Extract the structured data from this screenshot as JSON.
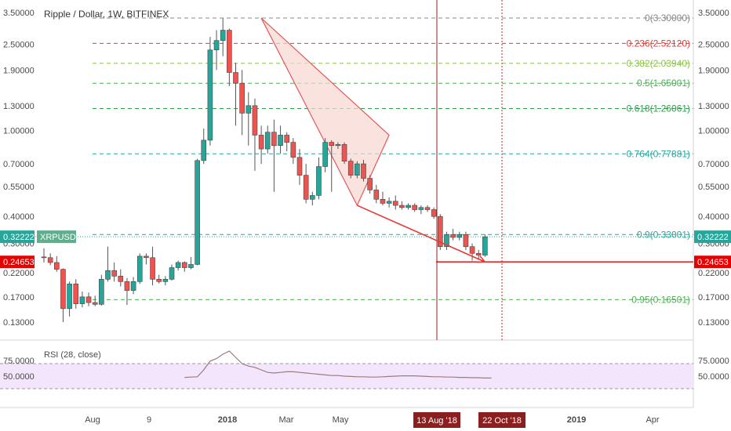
{
  "chart_data": {
    "type": "candlestick",
    "title": "Ripple / Dollar, 1W, BITFINEX",
    "symbol": "XRPUSD",
    "price_scale": "log",
    "price_ticks": [
      "3.50000",
      "2.50000",
      "1.90000",
      "1.30000",
      "1.00000",
      "0.70000",
      "0.55000",
      "0.40000",
      "0.30000",
      "0.22000",
      "0.17000",
      "0.13000"
    ],
    "time_labels": [
      "Aug",
      "9",
      "2018",
      "Mar",
      "May",
      "2019",
      "Apr"
    ],
    "highlighted_dates": [
      "13 Aug '18",
      "22 Oct '18"
    ],
    "current_price": {
      "label": "0.32222",
      "value": 0.32222,
      "color": "#26a69a"
    },
    "target_price": {
      "label": "0.24653",
      "value": 0.24653,
      "color": "#e60000"
    },
    "fib_levels": [
      {
        "label": "0(3.30000)",
        "value": 3.3,
        "color": "#888888"
      },
      {
        "label": "0.236(2.52120)",
        "value": 2.5212,
        "color": "#e53935"
      },
      {
        "label": "0.382(2.03940)",
        "value": 2.0394,
        "color": "#8bc34a"
      },
      {
        "label": "0.5(1.65001)",
        "value": 1.65001,
        "color": "#4caf50"
      },
      {
        "label": "0.618(1.26061)",
        "value": 1.26061,
        "color": "#2e9e4e"
      },
      {
        "label": "0.764(0.77881)",
        "value": 0.77881,
        "color": "#26a69a"
      },
      {
        "label": "0.9(0.33001)",
        "value": 0.33001,
        "color": "#26a69a"
      },
      {
        "label": "0.95(0.16501)",
        "value": 0.16501,
        "color": "#4caf50"
      }
    ],
    "pattern_points": [
      {
        "t": 34,
        "price": 3.3
      },
      {
        "t": 54,
        "price": 0.95
      },
      {
        "t": 49,
        "price": 0.45
      },
      {
        "t": 69,
        "price": 0.2465
      }
    ],
    "candles": [
      {
        "o": 0.26,
        "h": 0.285,
        "l": 0.245,
        "c": 0.258
      },
      {
        "o": 0.258,
        "h": 0.27,
        "l": 0.238,
        "c": 0.245
      },
      {
        "o": 0.245,
        "h": 0.262,
        "l": 0.222,
        "c": 0.228
      },
      {
        "o": 0.228,
        "h": 0.23,
        "l": 0.13,
        "c": 0.15
      },
      {
        "o": 0.15,
        "h": 0.2,
        "l": 0.138,
        "c": 0.195
      },
      {
        "o": 0.195,
        "h": 0.205,
        "l": 0.15,
        "c": 0.158
      },
      {
        "o": 0.158,
        "h": 0.18,
        "l": 0.152,
        "c": 0.17
      },
      {
        "o": 0.17,
        "h": 0.178,
        "l": 0.154,
        "c": 0.16
      },
      {
        "o": 0.16,
        "h": 0.172,
        "l": 0.154,
        "c": 0.157
      },
      {
        "o": 0.157,
        "h": 0.215,
        "l": 0.155,
        "c": 0.205
      },
      {
        "o": 0.205,
        "h": 0.29,
        "l": 0.2,
        "c": 0.225
      },
      {
        "o": 0.225,
        "h": 0.245,
        "l": 0.2,
        "c": 0.212
      },
      {
        "o": 0.212,
        "h": 0.228,
        "l": 0.19,
        "c": 0.2
      },
      {
        "o": 0.2,
        "h": 0.208,
        "l": 0.156,
        "c": 0.182
      },
      {
        "o": 0.182,
        "h": 0.21,
        "l": 0.175,
        "c": 0.2
      },
      {
        "o": 0.2,
        "h": 0.27,
        "l": 0.195,
        "c": 0.262
      },
      {
        "o": 0.262,
        "h": 0.27,
        "l": 0.24,
        "c": 0.258
      },
      {
        "o": 0.258,
        "h": 0.29,
        "l": 0.192,
        "c": 0.205
      },
      {
        "o": 0.205,
        "h": 0.215,
        "l": 0.196,
        "c": 0.2
      },
      {
        "o": 0.2,
        "h": 0.212,
        "l": 0.192,
        "c": 0.205
      },
      {
        "o": 0.205,
        "h": 0.24,
        "l": 0.202,
        "c": 0.232
      },
      {
        "o": 0.232,
        "h": 0.25,
        "l": 0.225,
        "c": 0.245
      },
      {
        "o": 0.245,
        "h": 0.248,
        "l": 0.222,
        "c": 0.232
      },
      {
        "o": 0.232,
        "h": 0.26,
        "l": 0.228,
        "c": 0.24
      },
      {
        "o": 0.24,
        "h": 0.738,
        "l": 0.238,
        "c": 0.725
      },
      {
        "o": 0.725,
        "h": 1.02,
        "l": 0.7,
        "c": 0.9
      },
      {
        "o": 0.9,
        "h": 2.7,
        "l": 0.85,
        "c": 2.35
      },
      {
        "o": 2.35,
        "h": 2.9,
        "l": 1.9,
        "c": 2.6
      },
      {
        "o": 2.6,
        "h": 3.3,
        "l": 2.2,
        "c": 2.9
      },
      {
        "o": 2.9,
        "h": 2.95,
        "l": 1.6,
        "c": 1.85
      },
      {
        "o": 1.85,
        "h": 2.05,
        "l": 1.05,
        "c": 1.65
      },
      {
        "o": 1.65,
        "h": 1.9,
        "l": 0.95,
        "c": 1.2
      },
      {
        "o": 1.2,
        "h": 1.5,
        "l": 0.85,
        "c": 1.3
      },
      {
        "o": 1.3,
        "h": 1.4,
        "l": 0.65,
        "c": 0.95
      },
      {
        "o": 0.95,
        "h": 1.05,
        "l": 0.7,
        "c": 0.82
      },
      {
        "o": 0.82,
        "h": 1.05,
        "l": 0.78,
        "c": 0.98
      },
      {
        "o": 0.98,
        "h": 1.12,
        "l": 0.52,
        "c": 0.85
      },
      {
        "o": 0.85,
        "h": 1.05,
        "l": 0.78,
        "c": 0.95
      },
      {
        "o": 0.95,
        "h": 0.98,
        "l": 0.8,
        "c": 0.88
      },
      {
        "o": 0.88,
        "h": 0.92,
        "l": 0.7,
        "c": 0.75
      },
      {
        "o": 0.75,
        "h": 0.82,
        "l": 0.56,
        "c": 0.62
      },
      {
        "o": 0.62,
        "h": 0.7,
        "l": 0.46,
        "c": 0.48
      },
      {
        "o": 0.48,
        "h": 0.52,
        "l": 0.45,
        "c": 0.5
      },
      {
        "o": 0.5,
        "h": 0.75,
        "l": 0.48,
        "c": 0.68
      },
      {
        "o": 0.68,
        "h": 0.92,
        "l": 0.64,
        "c": 0.88
      },
      {
        "o": 0.88,
        "h": 0.9,
        "l": 0.52,
        "c": 0.85
      },
      {
        "o": 0.85,
        "h": 0.88,
        "l": 0.82,
        "c": 0.86
      },
      {
        "o": 0.86,
        "h": 0.88,
        "l": 0.7,
        "c": 0.72
      },
      {
        "o": 0.72,
        "h": 0.74,
        "l": 0.6,
        "c": 0.62
      },
      {
        "o": 0.62,
        "h": 0.72,
        "l": 0.6,
        "c": 0.7
      },
      {
        "o": 0.7,
        "h": 0.73,
        "l": 0.58,
        "c": 0.6
      },
      {
        "o": 0.6,
        "h": 0.62,
        "l": 0.51,
        "c": 0.53
      },
      {
        "o": 0.53,
        "h": 0.56,
        "l": 0.46,
        "c": 0.48
      },
      {
        "o": 0.48,
        "h": 0.52,
        "l": 0.45,
        "c": 0.46
      },
      {
        "o": 0.46,
        "h": 0.49,
        "l": 0.44,
        "c": 0.47
      },
      {
        "o": 0.47,
        "h": 0.5,
        "l": 0.43,
        "c": 0.45
      },
      {
        "o": 0.45,
        "h": 0.47,
        "l": 0.43,
        "c": 0.44
      },
      {
        "o": 0.44,
        "h": 0.46,
        "l": 0.43,
        "c": 0.45
      },
      {
        "o": 0.45,
        "h": 0.46,
        "l": 0.42,
        "c": 0.43
      },
      {
        "o": 0.43,
        "h": 0.45,
        "l": 0.41,
        "c": 0.44
      },
      {
        "o": 0.44,
        "h": 0.45,
        "l": 0.42,
        "c": 0.43
      },
      {
        "o": 0.43,
        "h": 0.44,
        "l": 0.39,
        "c": 0.4
      },
      {
        "o": 0.4,
        "h": 0.41,
        "l": 0.28,
        "c": 0.29
      },
      {
        "o": 0.29,
        "h": 0.34,
        "l": 0.28,
        "c": 0.33
      },
      {
        "o": 0.33,
        "h": 0.35,
        "l": 0.31,
        "c": 0.32
      },
      {
        "o": 0.32,
        "h": 0.34,
        "l": 0.31,
        "c": 0.33
      },
      {
        "o": 0.33,
        "h": 0.34,
        "l": 0.28,
        "c": 0.29
      },
      {
        "o": 0.29,
        "h": 0.3,
        "l": 0.25,
        "c": 0.27
      },
      {
        "o": 0.27,
        "h": 0.28,
        "l": 0.255,
        "c": 0.265
      },
      {
        "o": 0.265,
        "h": 0.33,
        "l": 0.26,
        "c": 0.322
      }
    ],
    "rsi": {
      "label": "RSI (28, close)",
      "ticks": [
        "75.0000",
        "50.0000"
      ],
      "upper": 70,
      "lower": 30,
      "start_index": 22,
      "values": [
        48,
        48.5,
        49,
        60,
        74,
        78,
        85,
        90,
        80,
        70,
        66,
        64,
        60,
        56,
        55,
        56,
        57,
        57,
        56,
        55,
        54,
        53,
        52,
        51,
        51,
        50,
        49.5,
        49,
        49,
        48.5,
        48.5,
        49,
        49.5,
        50,
        50.5,
        50.5,
        50.5,
        50,
        49.5,
        49,
        49,
        48.5,
        48.5,
        48,
        48,
        47.5,
        47.5,
        47,
        47
      ]
    },
    "colors": {
      "up": "#26a69a",
      "down": "#ef5350",
      "pattern_fill": "#f8d7d2",
      "pattern_line": "#e05a5a",
      "rsi_band": "#f3e5fb",
      "rsi_line": "#9c7c7c",
      "arrow": "#e53935",
      "vline": "#8b2222"
    }
  }
}
